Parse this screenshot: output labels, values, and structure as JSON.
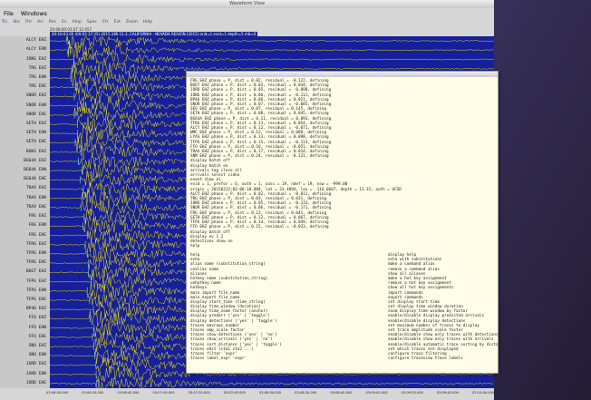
{
  "window": {
    "title": "Waveform View",
    "menu": [
      "File",
      "Windows"
    ],
    "toolbar": [
      "Trc",
      "Sta",
      "Fltr",
      "Arr",
      "Rec",
      "Ev",
      "Amp",
      "Spec",
      "Ctr",
      "Evt",
      "Zoom",
      "Help"
    ],
    "time_info": "20:08:00:03:07 11:057",
    "event_info": "20:10:03.00 (00:03 17:35) 2015.186 11.3, CALIFORNIA - NEVADA REGION (2015) orid=1 evid=1 depth=5 mb=0"
  },
  "stations": [
    "ALCY EHZ",
    "ALCY EHN",
    "JONS EHZ",
    "TRG EHZ",
    "TRG EHN",
    "TRG EHE",
    "SNOR EHZ",
    "SNOR EHN",
    "SNOR EHE",
    "SETH EHZ",
    "SETH EHN",
    "SETH EHE",
    "BOKG EHZ",
    "BG64A EHZ",
    "BG64A EHN",
    "BG64A EHE",
    "TRAX EHZ",
    "TRAX EHN",
    "TRAX EHE",
    "FRG EHZ",
    "FRG EHN",
    "FRG EHE",
    "TFRG EHZ",
    "TFRG EHN",
    "TFRG EHE",
    "BOGT EHZ",
    "TFPG EHZ",
    "TFPG EHN",
    "TFPG EHE",
    "BP46 EHZ",
    "FFO EHZ",
    "FFO EHN",
    "FFO EHE",
    "SNO EHZ",
    "SNO EHN",
    "JORD EHZ",
    "JORD EHN",
    "JORD EHE"
  ],
  "time_axis": [
    "03:06:00.000",
    "03:06:20.000",
    "03:06:40.000",
    "03:07:00.000",
    "03:07:20.000",
    "03:07:40.000",
    "03:08:00.000",
    "03:08:20.000",
    "03:08:40.000",
    "03:09:00.000",
    "03:09:20.000",
    "03:09:40.000",
    "03:10:00.000"
  ],
  "terminal": {
    "lines": [
      "FRG EHZ phase = P, dist = 0.02, residual = -0.122, defining",
      "BOGT EHZ phase = P, dist = 0.03, residual = 0.034, defining",
      "JORD EHZ phase = P, dist = 0.05, residual = -0.098, defining",
      "JONS EHZ phase = P, dist = 0.06, residual = -0.111, defining",
      "BP46 EHZ phase = P, dist = 0.06, residual = 0.021, defining",
      "SNOR EHZ phase = P, dist = 0.07, residual = -0.085, defining",
      "SEG EHZ phase = P, dist = 0.07, residual = 0.145, defining",
      "SETH EHZ phase = P, dist = 0.08, residual = 0.045, defining",
      "BG64A EHZ phase = P, dist = 0.11, residual = 0.093, defining",
      "TFRG EHZ phase = P, dist = 0.11, residual = 0.054, defining",
      "ALCY EHZ phase = P, dist = 0.12, residual = -0.071, defining",
      "WMC EHZ phase = P, dist = 0.12, residual = 0.088, defining",
      "LYAS EHZ phase = P, dist = 0.13, residual = 0.098, defining",
      "TFPG EHZ phase = P, dist = 0.15, residual = -0.113, defining",
      "FFO EHZ phase = P, dist = 0.16, residual = -0.051, defining",
      "TRAX EHZ phase = P, dist = 0.17, residual = 0.014, defining",
      "SNM EHZ phase = P, dist = 0.24, residual = -0.121, defining",
      "display batch off",
      "display batch on",
      "arrivals tag close all",
      "arrivals select video",
      "event show el",
      "evid = 1, prefor = 6, auth = 1, nass = 19, ndef = 19, nsw = -999.00",
      "origin = 20150213:03:06:18.884, lat = 33.4894, lon = -116.0667, depth = 11.32, auth = UCSD",
      "ALCY EHZ phase = P, dist = 0.02, residual = -0.011, defining",
      "TRG EHZ phase = P, dist = 0.03, residual = 0.031, defining",
      "JONS EHZ phase = P, dist = 0.05, residual = -0.133, defining",
      "SNOR EHZ phase = P, dist = 0.06, residual = -0.171, defining",
      "FRG EHZ phase = P, dist = 0.12, residual = 0.041, defining",
      "SETH EHZ phase = P, dist = 0.12, residual = 0.067, defining",
      "TFPG EHZ phase = P, dist = 0.14, residual = 0.049, defining",
      "FFO EHZ phase = P, dist = 0.15, residual = -0.033, defining",
      "display batch off",
      "display ev 1 2",
      "detections show on",
      "help"
    ],
    "help": [
      [
        "help",
        "display help"
      ],
      [
        "echo",
        "echo with substitutions"
      ],
      [
        "alias name (substitution_string)",
        "make a command alias"
      ],
      [
        "unalias name",
        "remove a command alias"
      ],
      [
        "aliases",
        "show all aliases"
      ],
      [
        "hotkey name (substitution_string)",
        "make a hot key assignment"
      ],
      [
        "unhotkey name",
        "remove a hot key assignment"
      ],
      [
        "hotkeys",
        "show all hot key assignments"
      ],
      [
        "main import file_name",
        "import commands"
      ],
      [
        "main export file_name",
        "export commands"
      ],
      [
        "display start_time (time_string)",
        "set display start time"
      ],
      [
        "display time_window (duration)",
        "set display time window duration"
      ],
      [
        "display time_zoom factor (anchor)",
        "zoom display time window by factor"
      ],
      [
        "display predarr ('yes' | 'toggle')",
        "enable/disable display predicted arrivals"
      ],
      [
        "display detections ('yes' | 'toggle')",
        "enable/disable display detections"
      ],
      [
        "traces maxrows number",
        "set maximum number of traces to display"
      ],
      [
        "traces amp_scale factor",
        "set trace amplitude scale factor"
      ],
      [
        "traces show_detections ('yes' | 'no')",
        "enable/disable show only traces with detections"
      ],
      [
        "traces show_arrivals ('yes' | 'no')",
        "enable/disable show only traces with arrivals"
      ],
      [
        "traces sort_distance ('yes' | 'toggle')",
        "enable/disable automatic trace sorting by distance"
      ],
      [
        "traces edit (sta1 sta2 ...)",
        "set which traces are displayed"
      ],
      [
        "traces filter 'expr'",
        "configure trace filtering"
      ],
      [
        "traces label_expr 'expr'",
        "configure traceview trace labels"
      ]
    ]
  }
}
